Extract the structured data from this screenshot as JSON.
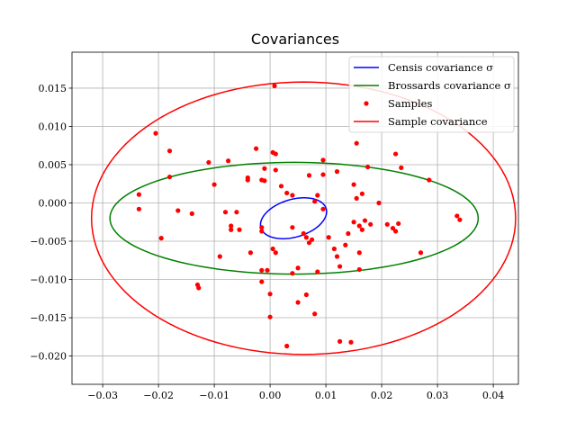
{
  "chart_data": {
    "type": "scatter",
    "title": "Covariances",
    "xlabel": "",
    "ylabel": "",
    "xlim": [
      -0.0355,
      0.0445
    ],
    "ylim": [
      -0.0237,
      0.0197
    ],
    "xticks": [
      -0.03,
      -0.02,
      -0.01,
      0.0,
      0.01,
      0.02,
      0.03,
      0.04
    ],
    "xtick_labels": [
      "−0.03",
      "−0.02",
      "−0.01",
      "0.00",
      "0.01",
      "0.02",
      "0.03",
      "0.04"
    ],
    "yticks": [
      -0.02,
      -0.015,
      -0.01,
      -0.005,
      0.0,
      0.005,
      0.01,
      0.015
    ],
    "ytick_labels": [
      "−0.020",
      "−0.015",
      "−0.010",
      "−0.005",
      "0.000",
      "0.005",
      "0.010",
      "0.015"
    ],
    "grid": true,
    "legend_position": "upper right",
    "series": [
      {
        "name": "Censis covariance σ",
        "kind": "ellipse",
        "color": "#0000ff",
        "center": [
          0.0042,
          -0.002
        ],
        "rx": 0.006,
        "ry": 0.0025,
        "angle_deg": 10
      },
      {
        "name": "Brossards covariance σ",
        "kind": "ellipse",
        "color": "#008000",
        "center": [
          0.0043,
          -0.002
        ],
        "rx": 0.033,
        "ry": 0.0073,
        "angle_deg": 0
      },
      {
        "name": "Samples",
        "kind": "points",
        "color": "#ff0000",
        "points": [
          [
            0.0008,
            0.0153
          ],
          [
            -0.0205,
            0.0091
          ],
          [
            -0.018,
            0.0068
          ],
          [
            -0.0025,
            0.0071
          ],
          [
            0.0005,
            0.0066
          ],
          [
            0.001,
            0.0064
          ],
          [
            0.0155,
            0.0078
          ],
          [
            0.0225,
            0.0064
          ],
          [
            -0.011,
            0.0053
          ],
          [
            -0.0075,
            0.0055
          ],
          [
            0.0095,
            0.0056
          ],
          [
            0.0175,
            0.0047
          ],
          [
            0.0235,
            0.0046
          ],
          [
            -0.001,
            0.0045
          ],
          [
            0.001,
            0.0043
          ],
          [
            0.012,
            0.0041
          ],
          [
            -0.018,
            0.0034
          ],
          [
            -0.004,
            0.003
          ],
          [
            -0.004,
            0.0033
          ],
          [
            -0.001,
            0.0029
          ],
          [
            0.007,
            0.0036
          ],
          [
            0.0095,
            0.0037
          ],
          [
            0.0285,
            0.003
          ],
          [
            -0.01,
            0.0024
          ],
          [
            0.002,
            0.0022
          ],
          [
            0.015,
            0.0024
          ],
          [
            -0.0015,
            0.003
          ],
          [
            0.003,
            0.0013
          ],
          [
            0.004,
            0.001
          ],
          [
            0.0085,
            0.001
          ],
          [
            0.0165,
            0.0012
          ],
          [
            0.0155,
            0.0006
          ],
          [
            -0.0235,
            0.0011
          ],
          [
            -0.0235,
            -0.0008
          ],
          [
            -0.0165,
            -0.001
          ],
          [
            -0.014,
            -0.0014
          ],
          [
            -0.008,
            -0.0012
          ],
          [
            -0.006,
            -0.0012
          ],
          [
            0.008,
            0.0002
          ],
          [
            0.0095,
            -0.0008
          ],
          [
            0.0195,
            0.0
          ],
          [
            0.0335,
            -0.0017
          ],
          [
            0.034,
            -0.0022
          ],
          [
            0.016,
            -0.003
          ],
          [
            0.017,
            -0.0023
          ],
          [
            0.018,
            -0.0028
          ],
          [
            0.015,
            -0.0025
          ],
          [
            0.021,
            -0.0028
          ],
          [
            0.023,
            -0.0027
          ],
          [
            0.022,
            -0.0033
          ],
          [
            0.0225,
            -0.0037
          ],
          [
            -0.007,
            -0.003
          ],
          [
            -0.007,
            -0.0035
          ],
          [
            -0.0055,
            -0.0035
          ],
          [
            -0.0015,
            -0.0032
          ],
          [
            -0.0015,
            -0.0037
          ],
          [
            0.004,
            -0.0032
          ],
          [
            0.0065,
            -0.0045
          ],
          [
            0.007,
            -0.0052
          ],
          [
            0.0075,
            -0.0048
          ],
          [
            0.0105,
            -0.0045
          ],
          [
            0.014,
            -0.004
          ],
          [
            0.0165,
            -0.0035
          ],
          [
            -0.0195,
            -0.0046
          ],
          [
            0.0005,
            -0.006
          ],
          [
            0.001,
            -0.0065
          ],
          [
            0.0115,
            -0.006
          ],
          [
            0.016,
            -0.0065
          ],
          [
            0.027,
            -0.0065
          ],
          [
            -0.0035,
            -0.0065
          ],
          [
            -0.009,
            -0.007
          ],
          [
            0.012,
            -0.007
          ],
          [
            -0.0015,
            -0.0088
          ],
          [
            -0.0005,
            -0.0088
          ],
          [
            0.005,
            -0.0085
          ],
          [
            0.0085,
            -0.009
          ],
          [
            0.0125,
            -0.0083
          ],
          [
            0.016,
            -0.0087
          ],
          [
            0.004,
            -0.0092
          ],
          [
            -0.0015,
            -0.0103
          ],
          [
            -0.013,
            -0.0107
          ],
          [
            -0.0128,
            -0.0111
          ],
          [
            0.0,
            -0.0119
          ],
          [
            0.0065,
            -0.012
          ],
          [
            0.005,
            -0.013
          ],
          [
            0.008,
            -0.0145
          ],
          [
            0.0,
            -0.0149
          ],
          [
            0.0125,
            -0.0181
          ],
          [
            0.0145,
            -0.0182
          ],
          [
            0.003,
            -0.0187
          ],
          [
            0.0135,
            -0.0055
          ],
          [
            0.006,
            -0.004
          ]
        ]
      },
      {
        "name": "Sample covariance",
        "kind": "ellipse",
        "color": "#ff0000",
        "center": [
          0.006,
          -0.002
        ],
        "rx": 0.038,
        "ry": 0.0178,
        "angle_deg": 0
      }
    ]
  }
}
